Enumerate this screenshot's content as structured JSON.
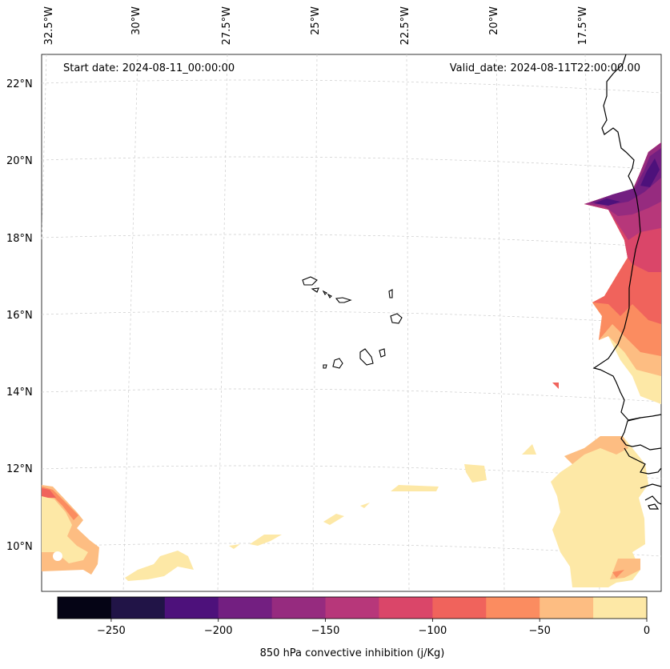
{
  "map": {
    "title_left": "Start date: 2024-08-11_00:00:00",
    "title_right": "Valid_date: 2024-08-11T22:00:00.00",
    "lon_labels": [
      "32.5°W",
      "30°W",
      "27.5°W",
      "25°W",
      "22.5°W",
      "20°W",
      "17.5°W"
    ],
    "lat_labels": [
      "22°N",
      "20°N",
      "18°N",
      "16°N",
      "14°N",
      "12°N",
      "10°N"
    ],
    "variable": "850 hPa convective inhibition",
    "units": "j/Kg"
  },
  "colorbar": {
    "label": "850 hPa convective inhibition (j/Kg)",
    "ticks": [
      "−250",
      "−200",
      "−150",
      "−100",
      "−50",
      "0"
    ],
    "colors": [
      "#050415",
      "#211447",
      "#4d117b",
      "#731f81",
      "#962b7f",
      "#b7377a",
      "#da4669",
      "#f0635c",
      "#fb8c60",
      "#fdbd82",
      "#fde8a6"
    ],
    "range": [
      -275,
      0
    ]
  },
  "colors": {
    "coast": "#000000",
    "grid": "#cccccc"
  }
}
